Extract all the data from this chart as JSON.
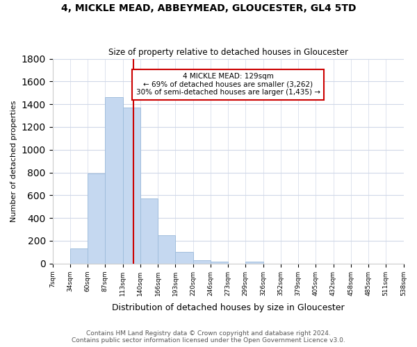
{
  "title": "4, MICKLE MEAD, ABBEYMEAD, GLOUCESTER, GL4 5TD",
  "subtitle": "Size of property relative to detached houses in Gloucester",
  "xlabel": "Distribution of detached houses by size in Gloucester",
  "ylabel": "Number of detached properties",
  "bin_edges": [
    "7sqm",
    "34sqm",
    "60sqm",
    "87sqm",
    "113sqm",
    "140sqm",
    "166sqm",
    "193sqm",
    "220sqm",
    "246sqm",
    "273sqm",
    "299sqm",
    "326sqm",
    "352sqm",
    "379sqm",
    "405sqm",
    "432sqm",
    "458sqm",
    "485sqm",
    "511sqm",
    "538sqm"
  ],
  "bar_values": [
    0,
    130,
    790,
    1460,
    1370,
    570,
    250,
    105,
    30,
    20,
    0,
    15,
    0,
    0,
    0,
    0,
    0,
    0,
    0,
    0
  ],
  "bar_color": "#c5d8f0",
  "bar_edge_color": "#a0bedd",
  "property_line_label": "4 MICKLE MEAD: 129sqm",
  "annotation_line1": "← 69% of detached houses are smaller (3,262)",
  "annotation_line2": "30% of semi-detached houses are larger (1,435) →",
  "annotation_box_color": "#ffffff",
  "annotation_box_edge": "#cc0000",
  "vline_color": "#cc0000",
  "vline_x": 4.6,
  "ylim": [
    0,
    1800
  ],
  "yticks": [
    0,
    200,
    400,
    600,
    800,
    1000,
    1200,
    1400,
    1600,
    1800
  ],
  "background_color": "#ffffff",
  "grid_color": "#d0d8e8",
  "footer_line1": "Contains HM Land Registry data © Crown copyright and database right 2024.",
  "footer_line2": "Contains public sector information licensed under the Open Government Licence v3.0."
}
